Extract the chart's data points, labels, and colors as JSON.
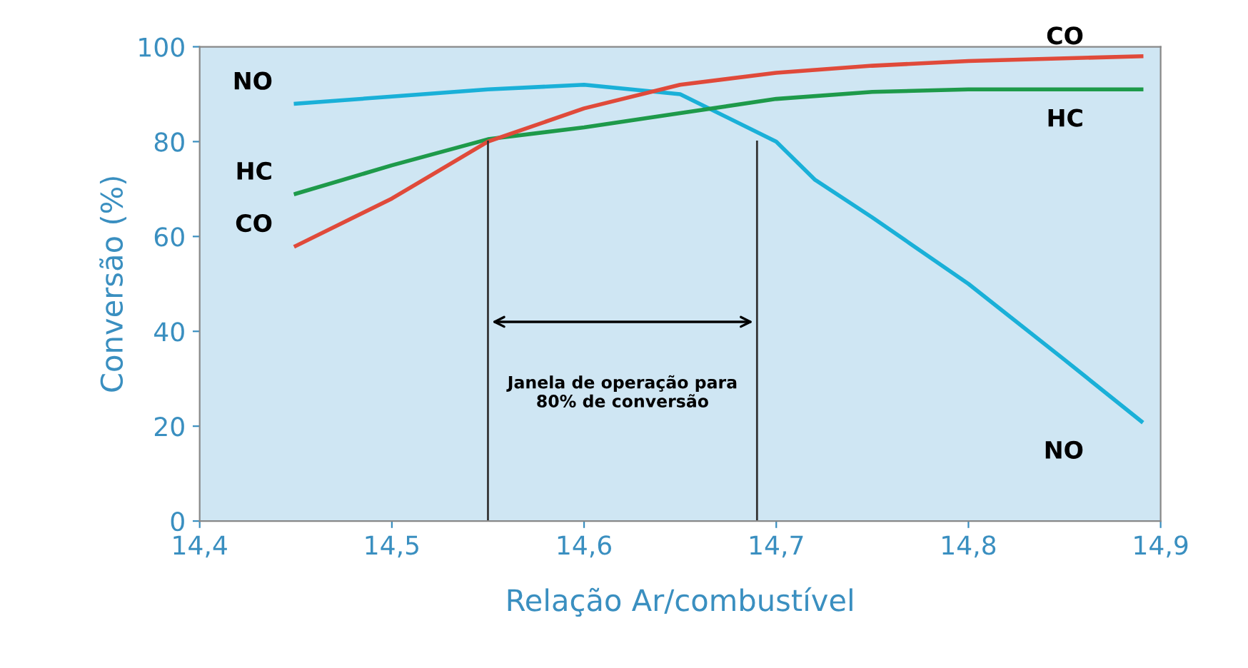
{
  "chart_data": {
    "type": "line",
    "xlabel": "Relação Ar/combustível",
    "ylabel": "Conversão (%)",
    "xlim": [
      14.4,
      14.9
    ],
    "ylim": [
      0,
      100
    ],
    "xticks": [
      {
        "value": 14.4,
        "label": "14,4"
      },
      {
        "value": 14.5,
        "label": "14,5"
      },
      {
        "value": 14.6,
        "label": "14,6"
      },
      {
        "value": 14.7,
        "label": "14,7"
      },
      {
        "value": 14.8,
        "label": "14,8"
      },
      {
        "value": 14.9,
        "label": "14,9"
      }
    ],
    "yticks": [
      0,
      20,
      40,
      60,
      80,
      100
    ],
    "grid": false,
    "legend": false,
    "marker": "none",
    "line_style": "solid",
    "series": [
      {
        "name": "NO",
        "color": "#1ab0d8",
        "x": [
          14.45,
          14.5,
          14.55,
          14.6,
          14.65,
          14.7,
          14.72,
          14.75,
          14.8,
          14.85,
          14.89
        ],
        "values": [
          88,
          89.5,
          91,
          92,
          90,
          80,
          72,
          64,
          50,
          34,
          21
        ]
      },
      {
        "name": "HC",
        "color": "#1e9a4a",
        "x": [
          14.45,
          14.5,
          14.55,
          14.6,
          14.65,
          14.7,
          14.75,
          14.8,
          14.89
        ],
        "values": [
          69,
          75,
          80.5,
          83,
          86,
          89,
          90.5,
          91,
          91
        ]
      },
      {
        "name": "CO",
        "color": "#e04a3a",
        "x": [
          14.45,
          14.5,
          14.55,
          14.6,
          14.65,
          14.7,
          14.75,
          14.8,
          14.89
        ],
        "values": [
          58,
          68,
          80,
          87,
          92,
          94.5,
          96,
          97,
          98
        ]
      }
    ],
    "ref_lines": [
      {
        "axis": "x",
        "value": 14.55,
        "color": "#333333"
      },
      {
        "axis": "x",
        "value": 14.69,
        "color": "#333333"
      }
    ],
    "annotations": [
      "Janela de operação para\n80% de conversão"
    ]
  }
}
